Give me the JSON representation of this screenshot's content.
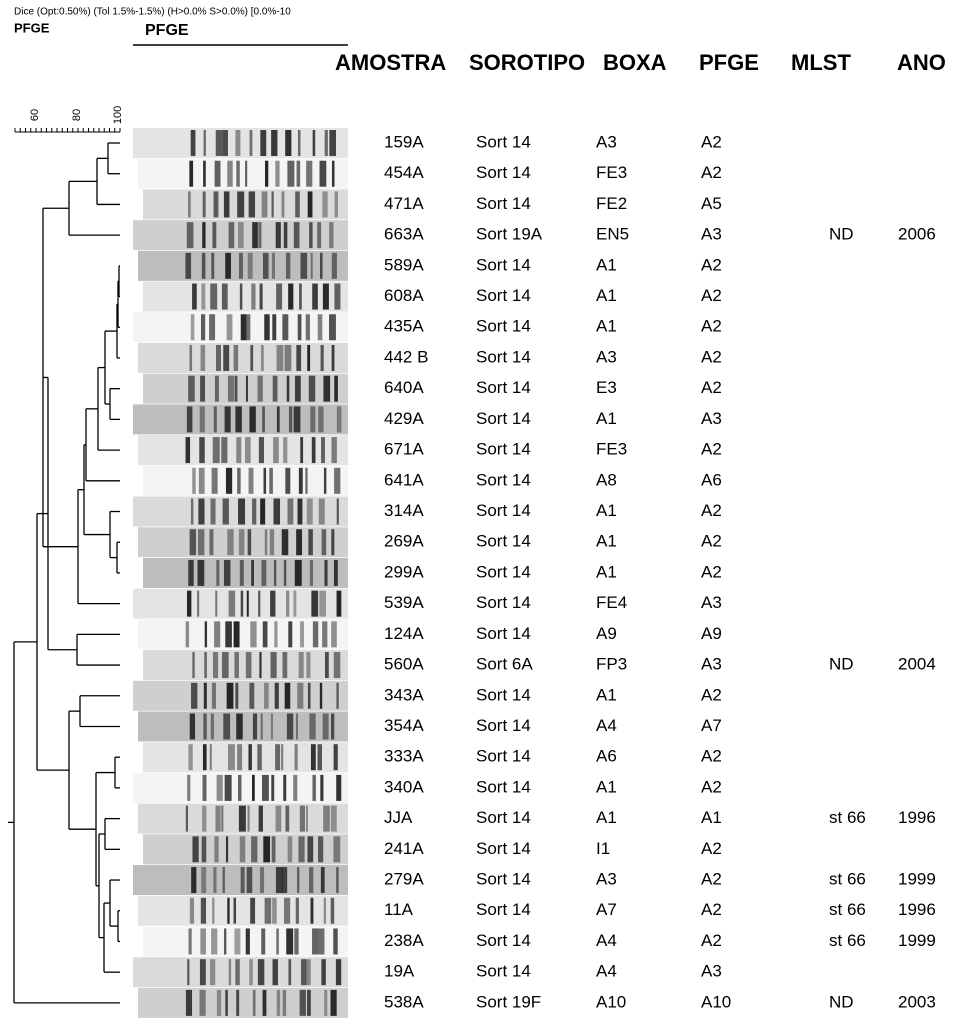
{
  "header": {
    "method": "Dice (Opt:0.50%) (Tol 1.5%-1.5%) (H>0.0% S>0.0%) [0.0%-10",
    "left_label": "PFGE",
    "gel_label": "PFGE"
  },
  "scale": {
    "ticks": [
      "60",
      "80",
      "100"
    ]
  },
  "table": {
    "columns": {
      "amostra": "AMOSTRA",
      "sorotipo": "SOROTIPO",
      "boxa": "BOXA",
      "pfge": "PFGE",
      "mlst": "MLST",
      "ano": "ANO"
    },
    "rows": [
      {
        "amostra": "159A",
        "sorotipo": "Sort 14",
        "boxa": "A3",
        "pfge": "A2"
      },
      {
        "amostra": "454A",
        "sorotipo": "Sort 14",
        "boxa": "FE3",
        "pfge": "A2"
      },
      {
        "amostra": "471A",
        "sorotipo": "Sort 14",
        "boxa": "FE2",
        "pfge": "A5"
      },
      {
        "amostra": "663A",
        "sorotipo": "Sort 19A",
        "boxa": "EN5",
        "pfge": "A3",
        "mlst": "ND",
        "ano": "2006"
      },
      {
        "amostra": "589A",
        "sorotipo": "Sort 14",
        "boxa": "A1",
        "pfge": "A2"
      },
      {
        "amostra": "608A",
        "sorotipo": "Sort 14",
        "boxa": "A1",
        "pfge": "A2"
      },
      {
        "amostra": "435A",
        "sorotipo": "Sort 14",
        "boxa": "A1",
        "pfge": "A2"
      },
      {
        "amostra": "442 B",
        "sorotipo": "Sort 14",
        "boxa": "A3",
        "pfge": "A2"
      },
      {
        "amostra": "640A",
        "sorotipo": "Sort 14",
        "boxa": "E3",
        "pfge": "A2"
      },
      {
        "amostra": "429A",
        "sorotipo": "Sort 14",
        "boxa": "A1",
        "pfge": "A3"
      },
      {
        "amostra": "671A",
        "sorotipo": "Sort 14",
        "boxa": "FE3",
        "pfge": "A2"
      },
      {
        "amostra": "641A",
        "sorotipo": "Sort 14",
        "boxa": "A8",
        "pfge": "A6"
      },
      {
        "amostra": "314A",
        "sorotipo": "Sort 14",
        "boxa": "A1",
        "pfge": "A2"
      },
      {
        "amostra": "269A",
        "sorotipo": "Sort 14",
        "boxa": "A1",
        "pfge": "A2"
      },
      {
        "amostra": "299A",
        "sorotipo": "Sort 14",
        "boxa": "A1",
        "pfge": "A2"
      },
      {
        "amostra": "539A",
        "sorotipo": "Sort 14",
        "boxa": "FE4",
        "pfge": "A3"
      },
      {
        "amostra": "124A",
        "sorotipo": "Sort 14",
        "boxa": "A9",
        "pfge": "A9"
      },
      {
        "amostra": "560A",
        "sorotipo": "Sort 6A",
        "boxa": "FP3",
        "pfge": "A3",
        "mlst": "ND",
        "ano": "2004"
      },
      {
        "amostra": "343A",
        "sorotipo": "Sort 14",
        "boxa": "A1",
        "pfge": "A2"
      },
      {
        "amostra": "354A",
        "sorotipo": "Sort 14",
        "boxa": "A4",
        "pfge": "A7"
      },
      {
        "amostra": "333A",
        "sorotipo": "Sort 14",
        "boxa": "A6",
        "pfge": "A2"
      },
      {
        "amostra": "340A",
        "sorotipo": "Sort 14",
        "boxa": "A1",
        "pfge": "A2"
      },
      {
        "amostra": "JJA",
        "sorotipo": "Sort 14",
        "boxa": "A1",
        "pfge": "A1",
        "mlst": "st 66",
        "ano": "1996"
      },
      {
        "amostra": "241A",
        "sorotipo": "Sort 14",
        "boxa": "I1",
        "pfge": "A2"
      },
      {
        "amostra": "279A",
        "sorotipo": "Sort 14",
        "boxa": "A3",
        "pfge": "A2",
        "mlst": "st 66",
        "ano": "1999"
      },
      {
        "amostra": "11A",
        "sorotipo": "Sort 14",
        "boxa": "A7",
        "pfge": "A2",
        "mlst": "st 66",
        "ano": "1996"
      },
      {
        "amostra": "238A",
        "sorotipo": "Sort 14",
        "boxa": "A4",
        "pfge": "A2",
        "mlst": "st 66",
        "ano": "1999"
      },
      {
        "amostra": "19A",
        "sorotipo": "Sort 14",
        "boxa": "A4",
        "pfge": "A3"
      },
      {
        "amostra": "538A",
        "sorotipo": "Sort 19F",
        "boxa": "A10",
        "pfge": "A10",
        "mlst": "ND",
        "ano": "2003"
      }
    ]
  }
}
